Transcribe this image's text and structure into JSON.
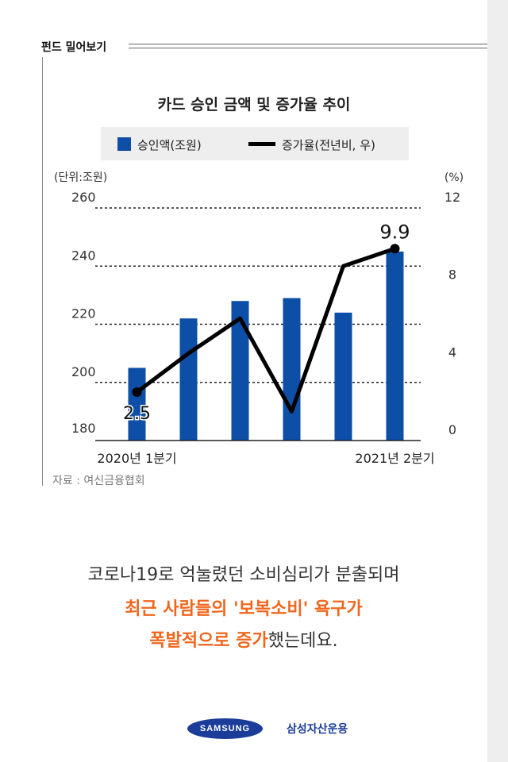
{
  "header": {
    "label": "펀드 밀어보기"
  },
  "chart_data": {
    "type": "bar",
    "title": "카드 승인 금액 및 증가율 추이",
    "legend": [
      "승인액(조원)",
      "증가율(전년비, 우)"
    ],
    "left_unit": "(단위:조원)",
    "right_unit": "(%)",
    "categories": [
      "2020년 1분기",
      "",
      "",
      "",
      "",
      "2021년 2분기"
    ],
    "series": [
      {
        "name": "승인액(조원)",
        "type": "bar",
        "axis": "left",
        "values": [
          205,
          222,
          228,
          229,
          224,
          245
        ]
      },
      {
        "name": "증가율(전년비, 우)",
        "type": "line",
        "axis": "right",
        "values": [
          2.5,
          4.5,
          6.3,
          1.5,
          9.0,
          9.9
        ]
      }
    ],
    "y_left": {
      "lim": [
        180,
        260
      ],
      "ticks": [
        "180",
        "200",
        "220",
        "240",
        "260"
      ]
    },
    "y_right": {
      "lim": [
        0,
        12
      ],
      "ticks": [
        "0",
        "4",
        "8",
        "12"
      ]
    },
    "data_labels": [
      "2.5",
      "9.9"
    ],
    "grid": true,
    "colors": {
      "bar": "#0d4ea6",
      "line": "#000000"
    }
  },
  "source": "자료 : 여신금융협회",
  "message": {
    "line1": "코로나19로 억눌렸던 소비심리가 분출되며",
    "line2": "최근 사람들의 '보복소비' 욕구가",
    "line3_highlight": "폭발적으로 증가",
    "line3_rest": "했는데요."
  },
  "footer": {
    "logo": "SAMSUNG",
    "brand": "삼성자산운용"
  }
}
